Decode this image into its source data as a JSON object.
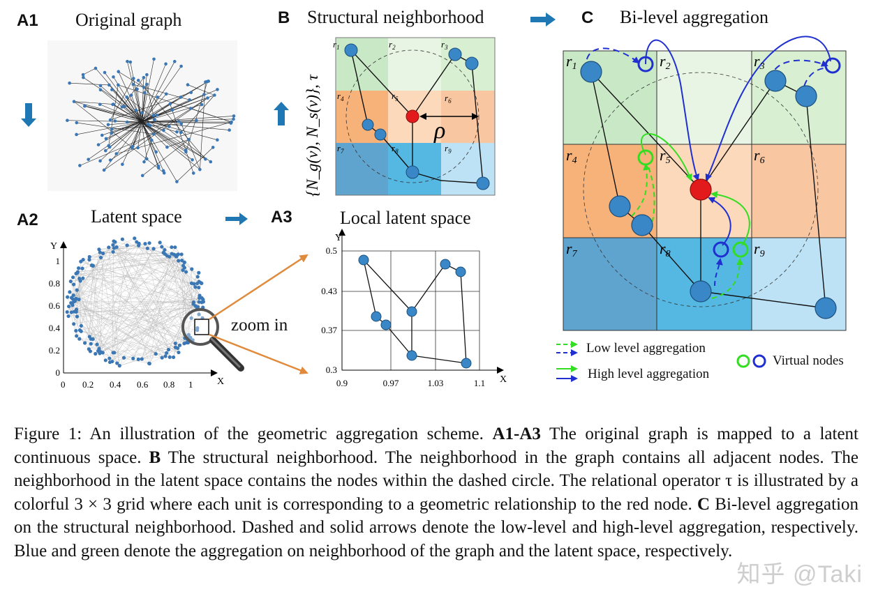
{
  "panels": {
    "a1": {
      "label": "A1",
      "title": "Original graph"
    },
    "b": {
      "label": "B",
      "title": "Structural neighborhood",
      "side_formula": "{N_g(v), N_s(v)}, τ",
      "rho": "ρ"
    },
    "c": {
      "label": "C",
      "title": "Bi-level aggregation"
    },
    "a2": {
      "label": "A2",
      "title": "Latent space",
      "zoom": "zoom in",
      "x_ticks": [
        "0",
        "0.2",
        "0.4",
        "0.6",
        "0.8",
        "1"
      ],
      "y_ticks": [
        "0",
        "0.2",
        "0.4",
        "0.6",
        "0.8",
        "1"
      ],
      "xlabel": "X",
      "ylabel": "Y"
    },
    "a3": {
      "label": "A3",
      "title": "Local latent space",
      "x_ticks": [
        "0.9",
        "0.97",
        "1.03",
        "1.1"
      ],
      "y_ticks": [
        "0.3",
        "0.37",
        "0.43",
        "0.5"
      ],
      "xlabel": "X",
      "ylabel": "Y"
    }
  },
  "region_labels": [
    "r1",
    "r2",
    "r3",
    "r4",
    "r5",
    "r6",
    "r7",
    "r8",
    "r9"
  ],
  "legend": {
    "low": "Low level aggregation",
    "high": "High level aggregation",
    "virtual": "Virtual nodes"
  },
  "colors": {
    "blue_node": "#3a87c8",
    "red_node": "#e31a1c",
    "arrow_blue": "#1f2fd0",
    "arrow_green": "#33dd22",
    "panel_arrow": "#1f77b4",
    "zoom_arrow": "#e08a3c"
  },
  "caption": {
    "fig": "Figure 1:",
    "intro": "An illustration of the geometric aggregation scheme.",
    "a_label": "A1-A3",
    "a_text": "The original graph is mapped to a latent continuous space.",
    "b_label": "B",
    "b_text": "The structural neighborhood. The neighborhood in the graph contains all adjacent nodes. The neighborhood in the latent space contains the nodes within the dashed circle. The relational operator τ is illustrated by a colorful 3 × 3 grid where each unit is corresponding to a geometric relationship to the red node.",
    "c_label": "C",
    "c_text": "Bi-level aggregation on the structural neighborhood. Dashed and solid arrows denote the low-level and high-level aggregation, respectively. Blue and green denote the aggregation on neighborhood of the graph and the latent space, respectively."
  },
  "watermark": "知乎 @Taki"
}
